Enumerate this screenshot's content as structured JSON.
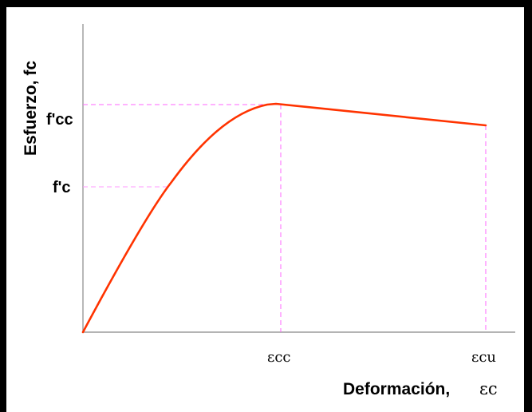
{
  "figure": {
    "y_axis_label": "Esfuerzo, fc",
    "x_axis_label": "Deformación,",
    "x_axis_symbol": "εc",
    "y_tick_fcc": "f'cc",
    "y_tick_fc": "f'c",
    "x_tick_ecc": "εcc",
    "x_tick_ecu": "εcu",
    "curve_color": "#ff3300",
    "guide_color": "#ff66ff",
    "axis_color": "#888888"
  }
}
